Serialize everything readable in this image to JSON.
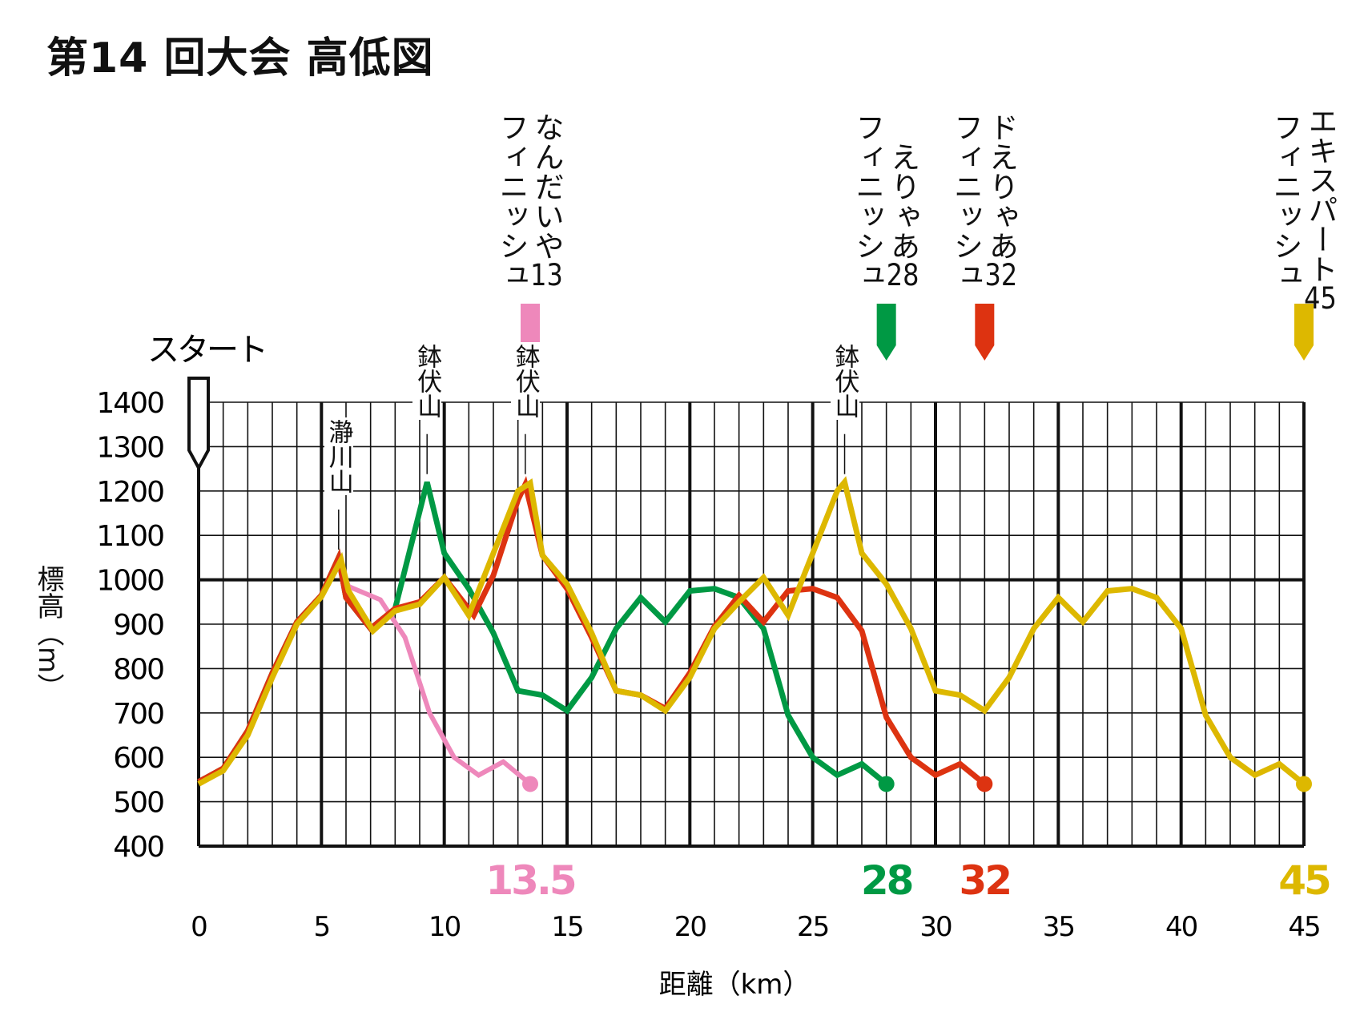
{
  "title": "第14 回大会 高低図",
  "chart_data": {
    "type": "line",
    "title": "第14 回大会 高低図",
    "xlabel": "距離（km）",
    "ylabel": "標高（m）",
    "xlim": [
      0,
      45
    ],
    "ylim": [
      400,
      1400
    ],
    "xticks": [
      0,
      5,
      10,
      15,
      20,
      25,
      30,
      35,
      40,
      45
    ],
    "yticks": [
      400,
      500,
      600,
      700,
      800,
      900,
      1000,
      1100,
      1200,
      1300,
      1400
    ],
    "grid": true,
    "start_label": "スタート",
    "series": [
      {
        "name": "なんだいや",
        "distance": "13.5",
        "color": "#ee88bb",
        "points": [
          [
            0,
            545
          ],
          [
            1,
            575
          ],
          [
            2,
            660
          ],
          [
            3,
            790
          ],
          [
            4,
            905
          ],
          [
            5,
            965
          ],
          [
            5.7,
            1050
          ],
          [
            6.1,
            985
          ],
          [
            7.4,
            955
          ],
          [
            8.4,
            870
          ],
          [
            9.4,
            700
          ],
          [
            10.4,
            600
          ],
          [
            11.4,
            560
          ],
          [
            12.4,
            590
          ],
          [
            13.5,
            540
          ]
        ]
      },
      {
        "name": "えりゃあ",
        "distance": "28",
        "color": "#009944",
        "points": [
          [
            0,
            545
          ],
          [
            1,
            575
          ],
          [
            2,
            660
          ],
          [
            3,
            790
          ],
          [
            4,
            905
          ],
          [
            5,
            965
          ],
          [
            5.7,
            1050
          ],
          [
            6,
            960
          ],
          [
            7,
            890
          ],
          [
            8,
            935
          ],
          [
            9.3,
            1220
          ],
          [
            10,
            1060
          ],
          [
            11,
            980
          ],
          [
            12,
            880
          ],
          [
            13,
            750
          ],
          [
            14,
            740
          ],
          [
            15,
            705
          ],
          [
            16,
            780
          ],
          [
            17,
            890
          ],
          [
            18,
            960
          ],
          [
            19,
            905
          ],
          [
            20,
            975
          ],
          [
            21,
            980
          ],
          [
            22,
            960
          ],
          [
            23,
            890
          ],
          [
            24,
            695
          ],
          [
            25,
            600
          ],
          [
            26,
            560
          ],
          [
            27,
            585
          ],
          [
            28,
            540
          ]
        ]
      },
      {
        "name": "ドえりゃあ",
        "distance": "32",
        "color": "#dd3311",
        "points": [
          [
            0,
            545
          ],
          [
            1,
            575
          ],
          [
            2,
            660
          ],
          [
            3,
            790
          ],
          [
            4,
            905
          ],
          [
            5,
            965
          ],
          [
            5.7,
            1050
          ],
          [
            6,
            960
          ],
          [
            7,
            890
          ],
          [
            8,
            935
          ],
          [
            9,
            950
          ],
          [
            10,
            1005
          ],
          [
            11.2,
            920
          ],
          [
            12,
            1010
          ],
          [
            13,
            1180
          ],
          [
            13.3,
            1215
          ],
          [
            14,
            1055
          ],
          [
            15,
            980
          ],
          [
            16,
            870
          ],
          [
            17,
            750
          ],
          [
            18,
            740
          ],
          [
            19,
            710
          ],
          [
            20,
            790
          ],
          [
            21,
            895
          ],
          [
            22,
            965
          ],
          [
            23,
            905
          ],
          [
            24,
            975
          ],
          [
            25,
            980
          ],
          [
            26,
            960
          ],
          [
            27,
            885
          ],
          [
            28,
            690
          ],
          [
            29,
            600
          ],
          [
            30,
            560
          ],
          [
            31,
            585
          ],
          [
            32,
            540
          ]
        ]
      },
      {
        "name": "エキスパート",
        "distance": "45",
        "color": "#ddb800",
        "points": [
          [
            0,
            540
          ],
          [
            1,
            570
          ],
          [
            2,
            650
          ],
          [
            3,
            780
          ],
          [
            4,
            900
          ],
          [
            5,
            962
          ],
          [
            5.8,
            1045
          ],
          [
            6.1,
            975
          ],
          [
            7.1,
            885
          ],
          [
            8,
            930
          ],
          [
            9,
            945
          ],
          [
            10,
            1005
          ],
          [
            11,
            920
          ],
          [
            12,
            1060
          ],
          [
            13,
            1200
          ],
          [
            13.5,
            1218
          ],
          [
            14,
            1055
          ],
          [
            15,
            990
          ],
          [
            16,
            880
          ],
          [
            17,
            750
          ],
          [
            18,
            740
          ],
          [
            19,
            705
          ],
          [
            20,
            780
          ],
          [
            21,
            890
          ],
          [
            22,
            950
          ],
          [
            23,
            1005
          ],
          [
            24,
            920
          ],
          [
            25,
            1060
          ],
          [
            26,
            1200
          ],
          [
            26.3,
            1220
          ],
          [
            27,
            1060
          ],
          [
            28,
            990
          ],
          [
            29,
            890
          ],
          [
            30,
            750
          ],
          [
            31,
            740
          ],
          [
            32,
            705
          ],
          [
            33,
            780
          ],
          [
            34,
            890
          ],
          [
            35,
            960
          ],
          [
            36,
            905
          ],
          [
            37,
            975
          ],
          [
            38,
            980
          ],
          [
            39,
            960
          ],
          [
            40,
            890
          ],
          [
            41,
            695
          ],
          [
            42,
            600
          ],
          [
            43,
            560
          ],
          [
            44,
            585
          ],
          [
            45,
            540
          ]
        ]
      }
    ],
    "finish_labels": [
      {
        "name": "なんだいや",
        "num": "13",
        "suffix": "フィニッシュ",
        "km": 13.5,
        "color": "#ee88bb"
      },
      {
        "name": "えりゃあ",
        "num": "28",
        "suffix": "フィニッシュ",
        "km": 28,
        "color": "#009944"
      },
      {
        "name": "ドえりゃあ",
        "num": "32",
        "suffix": "フィニッシュ",
        "km": 32,
        "color": "#dd3311"
      },
      {
        "name": "エキスパート",
        "num": "45",
        "suffix": "フィニッシュ",
        "km": 45,
        "color": "#ddb800"
      }
    ],
    "peaks": [
      {
        "name": "瀞川山",
        "km": 5.7,
        "elev": 1050
      },
      {
        "name": "鉢伏山",
        "km": 9.3,
        "elev": 1220
      },
      {
        "name": "鉢伏山",
        "km": 13.3,
        "elev": 1220
      },
      {
        "name": "鉢伏山",
        "km": 26.3,
        "elev": 1220
      }
    ]
  }
}
